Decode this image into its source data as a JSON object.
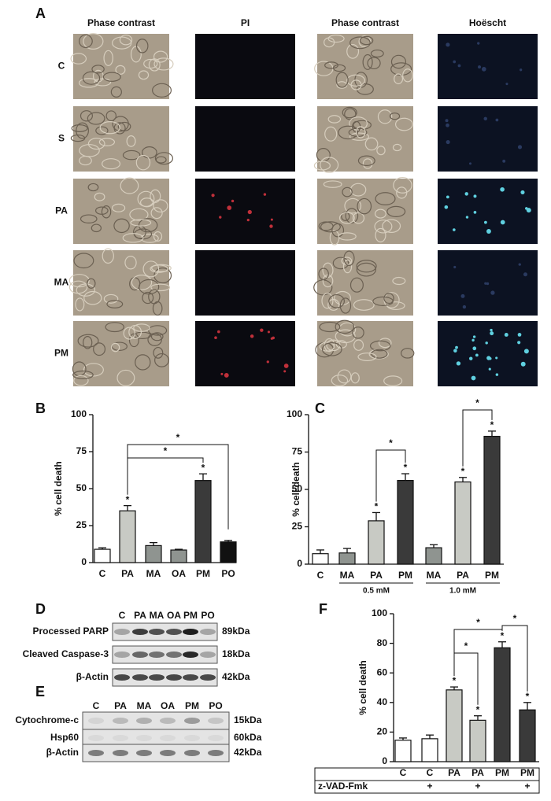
{
  "panel_labels": [
    "A",
    "B",
    "C",
    "D",
    "E",
    "F"
  ],
  "panel_a": {
    "columns": [
      "Phase contrast",
      "PI",
      "Phase contrast",
      "Hoëscht"
    ],
    "rows": [
      "C",
      "S",
      "PA",
      "MA",
      "PM"
    ]
  },
  "chart_data": [
    {
      "type": "bar",
      "ylabel": "% cell death",
      "categories": [
        "C",
        "PA",
        "MA",
        "OA",
        "PM",
        "PO"
      ],
      "values": [
        9,
        35,
        11.5,
        8.5,
        55.5,
        14
      ],
      "errors": [
        1,
        3.5,
        2,
        0.5,
        4.5,
        1
      ],
      "colors": [
        "#ffffff",
        "#c8cac4",
        "#8f9490",
        "#8f9490",
        "#3a3a3a",
        "#111111"
      ],
      "ylim": [
        0,
        100
      ],
      "yticks": [
        0,
        25,
        50,
        75,
        100
      ],
      "annotation": "*"
    },
    {
      "type": "bar",
      "ylabel": "% cell death",
      "categories": [
        "C",
        "MA",
        "PA",
        "PM",
        "MA",
        "PA",
        "PM"
      ],
      "groups": [
        "0.5 mM",
        "1.0 mM"
      ],
      "values": [
        7,
        7.5,
        29,
        56,
        11,
        55,
        85.5
      ],
      "errors": [
        2.5,
        3,
        5.5,
        4.5,
        2,
        3,
        3.5
      ],
      "colors": [
        "#ffffff",
        "#8f9490",
        "#c8cac4",
        "#3a3a3a",
        "#8f9490",
        "#c8cac4",
        "#3a3a3a"
      ],
      "ylim": [
        0,
        100
      ],
      "yticks": [
        0,
        25,
        50,
        75,
        100
      ],
      "annotation": "*"
    },
    {
      "type": "bar",
      "ylabel": "% cell death",
      "categories": [
        "C",
        "C",
        "PA",
        "PA",
        "PM",
        "PM"
      ],
      "values": [
        14.5,
        15.5,
        48.5,
        28,
        77,
        35
      ],
      "errors": [
        1.5,
        2.5,
        2,
        3,
        4,
        5
      ],
      "colors": [
        "#ffffff",
        "#ffffff",
        "#c8cac4",
        "#c8cac4",
        "#3a3a3a",
        "#3a3a3a"
      ],
      "ylim": [
        0,
        100
      ],
      "yticks": [
        0,
        20,
        40,
        60,
        80,
        100
      ],
      "annotation": "*",
      "treatment": {
        "label": "z-VAD-Fmk",
        "marks": [
          "+",
          "+",
          "+"
        ]
      }
    }
  ],
  "panel_d": {
    "lanes": [
      "C",
      "PA",
      "MA",
      "OA",
      "PM",
      "PO"
    ],
    "rows": [
      {
        "label": "Processed PARP",
        "size": "89kDa"
      },
      {
        "label": "Cleaved Caspase-3",
        "size": "18kDa"
      },
      {
        "label": "β-Actin",
        "size": "42kDa"
      }
    ]
  },
  "panel_e": {
    "lanes": [
      "C",
      "PA",
      "MA",
      "OA",
      "PM",
      "PO"
    ],
    "rows": [
      {
        "label": "Cytochrome-c",
        "size": "15kDa"
      },
      {
        "label": "Hsp60",
        "size": "60kDa"
      },
      {
        "label": "β-Actin",
        "size": "42kDa"
      }
    ]
  }
}
